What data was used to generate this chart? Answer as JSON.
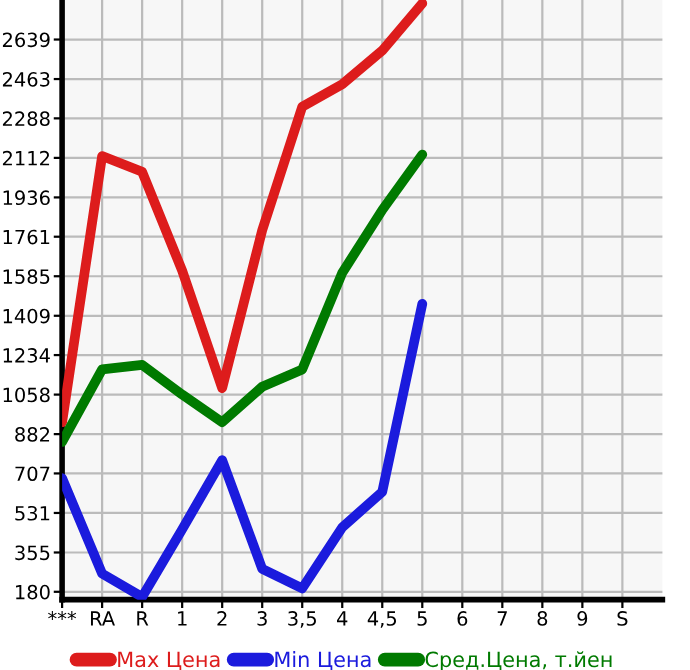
{
  "chart_data": {
    "type": "line",
    "categories": [
      "***",
      "RA",
      "R",
      "1",
      "2",
      "3",
      "3,5",
      "4",
      "4,5",
      "5",
      "6",
      "7",
      "8",
      "9",
      "S"
    ],
    "ylim": [
      145,
      2815
    ],
    "yticks": [
      180,
      355,
      531,
      707,
      882,
      1058,
      1234,
      1409,
      1585,
      1761,
      1936,
      2112,
      2288,
      2463,
      2639
    ],
    "grid": true,
    "legend": "bottom",
    "marker": "none",
    "line_style": "solid",
    "series": [
      {
        "name": "Max Цена",
        "color": "#dd1c1c",
        "values": [
          935,
          2120,
          2050,
          1610,
          1087,
          1790,
          2340,
          2440,
          2590,
          2800,
          null,
          null,
          null,
          null,
          null
        ]
      },
      {
        "name": "Min Цена",
        "color": "#1b1bdd",
        "values": [
          686,
          261,
          157,
          458,
          766,
          282,
          195,
          467,
          625,
          1462,
          null,
          null,
          null,
          null,
          null
        ]
      },
      {
        "name": "Сред.Цена, т.йен",
        "color": "#007a00",
        "values": [
          847,
          1170,
          1190,
          1058,
          935,
          1093,
          1170,
          1600,
          1880,
          2127,
          null,
          null,
          null,
          null,
          null
        ]
      }
    ]
  }
}
